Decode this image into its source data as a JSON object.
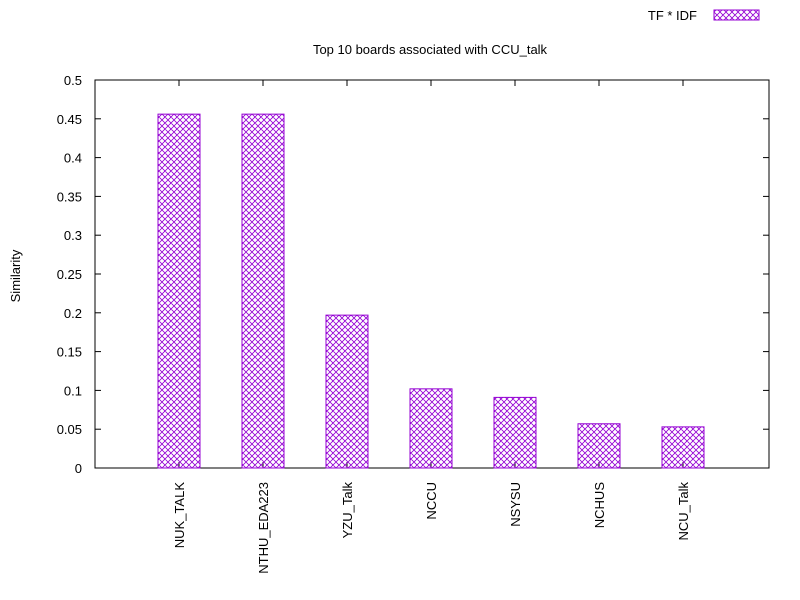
{
  "chart_data": {
    "type": "bar",
    "title": "Top 10 boards associated with CCU_talk",
    "xlabel": "",
    "ylabel": "Similarity",
    "ylim": [
      0,
      0.5
    ],
    "yticks": [
      "0",
      "0.05",
      "0.1",
      "0.15",
      "0.2",
      "0.25",
      "0.3",
      "0.35",
      "0.4",
      "0.45",
      "0.5"
    ],
    "categories": [
      "NUK_TALK",
      "NTHU_EDA223",
      "YZU_Talk",
      "NCCU",
      "NSYSU",
      "NCHUS",
      "NCU_Talk"
    ],
    "series": [
      {
        "name": "TF * IDF",
        "values": [
          0.456,
          0.456,
          0.197,
          0.102,
          0.091,
          0.057,
          0.053
        ]
      }
    ],
    "grid": false,
    "legend_position": "top-right",
    "colors": {
      "bar_stroke": "#9400d3",
      "bar_pattern": "#9400d3",
      "axis": "#000000"
    }
  }
}
